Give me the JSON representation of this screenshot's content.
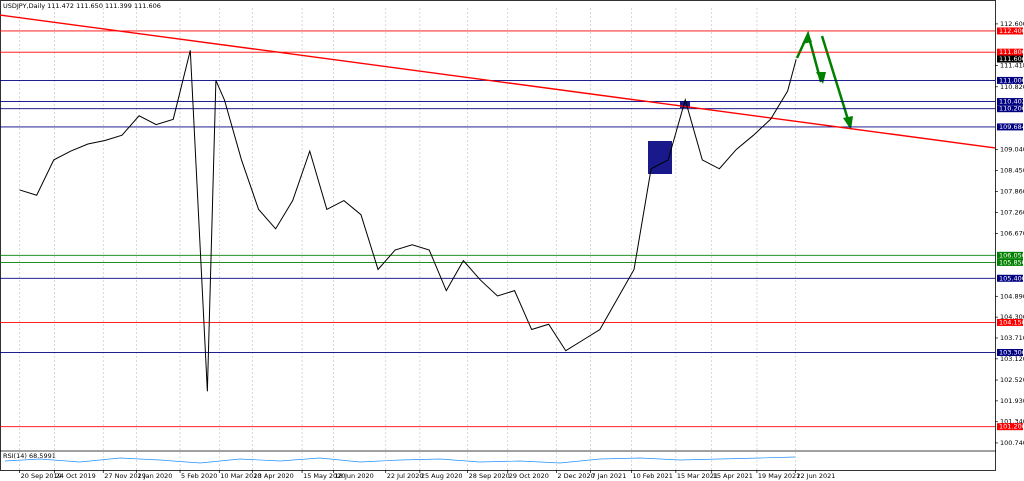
{
  "chart_data": {
    "type": "line",
    "title": "USDJPY,Daily 111.472 111.650 111.399 111.606",
    "indicator_label": "RSI(14) 68.5991",
    "xlim": [
      -2.3,
      114.3
    ],
    "ylim": [
      100.54,
      113.05
    ],
    "grid": true,
    "xticks": [
      {
        "value": 0,
        "label": "20 Sep 2019"
      },
      {
        "value": 4.1,
        "label": "24 Oct 2019"
      },
      {
        "value": 9.8,
        "label": "27 Nov 2019"
      },
      {
        "value": 13.7,
        "label": "2 Jan 2020"
      },
      {
        "value": 18.8,
        "label": "5 Feb 2020"
      },
      {
        "value": 23.4,
        "label": "10 Mar 2020"
      },
      {
        "value": 27.3,
        "label": "13 Apr 2020"
      },
      {
        "value": 33.1,
        "label": "15 May 2020"
      },
      {
        "value": 36.8,
        "label": "18 Jun 2020"
      },
      {
        "value": 42.9,
        "label": "22 Jul 2020"
      },
      {
        "value": 46.9,
        "label": "25 Aug 2020"
      },
      {
        "value": 52.5,
        "label": "28 Sep 2020"
      },
      {
        "value": 57.2,
        "label": "29 Oct 2020"
      },
      {
        "value": 62.9,
        "label": "2 Dec 2020"
      },
      {
        "value": 66.9,
        "label": "7 Jan 2021"
      },
      {
        "value": 71.7,
        "label": "10 Feb 2021"
      },
      {
        "value": 76.9,
        "label": "15 Mar 2021"
      },
      {
        "value": 81.1,
        "label": "15 Apr 2021"
      },
      {
        "value": 86.4,
        "label": "19 May 2021"
      },
      {
        "value": 90.9,
        "label": "22 Jun 2021"
      }
    ],
    "yticks": [
      {
        "value": 112.6,
        "label": "112.600"
      },
      {
        "value": 111.418,
        "label": "111.418"
      },
      {
        "value": 110.82,
        "label": "110.820"
      },
      {
        "value": 109.04,
        "label": "109.040"
      },
      {
        "value": 108.45,
        "label": "108.450"
      },
      {
        "value": 107.86,
        "label": "107.860"
      },
      {
        "value": 107.26,
        "label": "107.260"
      },
      {
        "value": 106.67,
        "label": "106.670"
      },
      {
        "value": 104.89,
        "label": "104.890"
      },
      {
        "value": 104.3,
        "label": "104.300"
      },
      {
        "value": 103.71,
        "label": "103.710"
      },
      {
        "value": 103.12,
        "label": "103.120"
      },
      {
        "value": 102.52,
        "label": "102.520"
      },
      {
        "value": 101.93,
        "label": "101.930"
      },
      {
        "value": 101.34,
        "label": "101.340"
      },
      {
        "value": 100.74,
        "label": "100.740"
      }
    ],
    "series": [
      {
        "name": "USDJPY",
        "color": "#000000",
        "x": [
          0,
          2,
          4,
          6,
          8,
          10,
          12,
          14,
          16,
          18,
          20,
          22,
          23,
          24,
          26,
          28,
          30,
          32,
          34,
          36,
          38,
          40,
          42,
          44,
          46,
          48,
          50,
          52,
          54,
          56,
          58,
          60,
          62,
          64,
          66,
          68,
          70,
          72,
          74,
          76,
          78,
          80,
          82,
          84,
          86,
          88,
          90,
          91
        ],
        "values": [
          107.9,
          107.75,
          108.75,
          109.0,
          109.2,
          109.3,
          109.45,
          110.0,
          109.75,
          109.9,
          111.85,
          102.2,
          111.0,
          110.45,
          108.75,
          107.35,
          106.8,
          107.6,
          109.0,
          107.35,
          107.6,
          107.2,
          105.65,
          106.2,
          106.35,
          106.2,
          105.05,
          105.9,
          105.35,
          104.9,
          105.05,
          103.95,
          104.1,
          103.35,
          103.65,
          103.95,
          104.8,
          105.65,
          108.5,
          108.75,
          110.45,
          108.75,
          108.5,
          109.05,
          109.45,
          109.9,
          110.7,
          111.6
        ]
      }
    ],
    "trendline": {
      "color": "#ff0000",
      "x": [
        -2.3,
        114.3
      ],
      "values": [
        112.85,
        109.09
      ]
    },
    "current_price": {
      "value": 111.606,
      "label": "111.606"
    },
    "levels": [
      {
        "value": 112.4,
        "label": "112.400",
        "color": "#ff0000"
      },
      {
        "value": 111.8,
        "label": "111.800",
        "color": "#ff0000"
      },
      {
        "value": 111.0,
        "label": "111.000",
        "color": "#000080"
      },
      {
        "value": 110.402,
        "label": "110.402",
        "color": "#000080"
      },
      {
        "value": 110.2,
        "label": "110.200",
        "color": "#000080"
      },
      {
        "value": 109.684,
        "label": "109.684",
        "color": "#000080"
      },
      {
        "value": 106.05,
        "label": "106.050",
        "color": "#008000"
      },
      {
        "value": 105.85,
        "label": "105.850",
        "color": "#008000"
      },
      {
        "value": 105.4,
        "label": "105.400",
        "color": "#000080"
      },
      {
        "value": 104.15,
        "label": "104.150",
        "color": "#ff0000"
      },
      {
        "value": 103.3,
        "label": "103.300",
        "color": "#000080"
      },
      {
        "value": 101.2,
        "label": "101.200",
        "color": "#ff0000"
      }
    ]
  }
}
